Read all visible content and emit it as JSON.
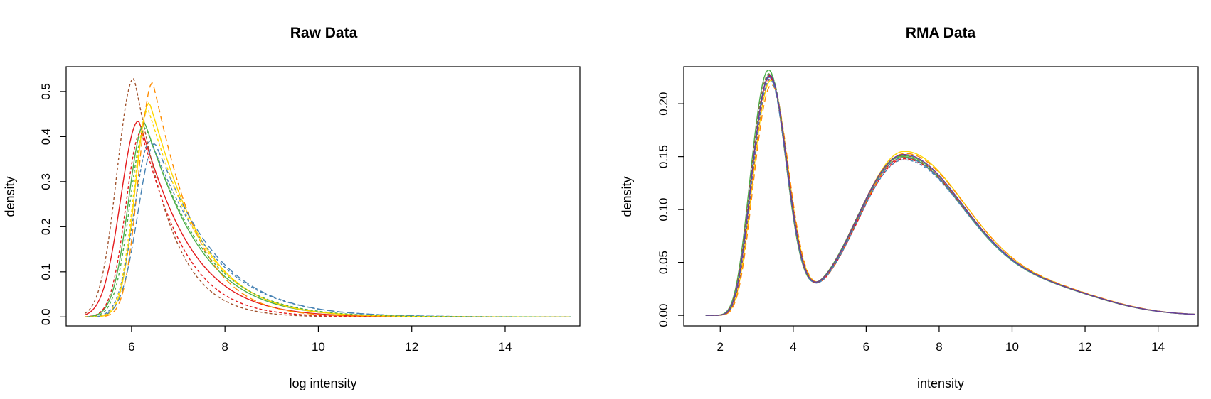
{
  "chart_data": [
    {
      "type": "line",
      "title": "Raw Data",
      "xlabel": "log intensity",
      "ylabel": "density",
      "xlim": [
        4.6,
        15.6
      ],
      "ylim": [
        -0.02,
        0.555
      ],
      "xticks": [
        6,
        8,
        10,
        12,
        14
      ],
      "yticks": [
        0.0,
        0.1,
        0.2,
        0.3,
        0.4,
        0.5
      ],
      "ytick_labels": [
        "0.0",
        "0.1",
        "0.2",
        "0.3",
        "0.4",
        "0.5"
      ],
      "grid": false,
      "legend": "none",
      "x_domain": [
        5.0,
        15.4
      ],
      "series": [
        {
          "color": "#e41a1c",
          "dash": "solid",
          "peak_x": 6.15,
          "peak_y": 0.435,
          "rise_sd": 0.38,
          "tail_scale": 1.85
        },
        {
          "color": "#4daf4a",
          "dash": "solid",
          "peak_x": 6.28,
          "peak_y": 0.43,
          "rise_sd": 0.34,
          "tail_scale": 2.0
        },
        {
          "color": "#ffd700",
          "dash": "solid",
          "peak_x": 6.38,
          "peak_y": 0.475,
          "rise_sd": 0.3,
          "tail_scale": 1.9
        },
        {
          "color": "#a0522d",
          "dash": "dashed-short",
          "peak_x": 6.05,
          "peak_y": 0.53,
          "rise_sd": 0.36,
          "tail_scale": 1.35
        },
        {
          "color": "#ff8c00",
          "dash": "dashed-long",
          "peak_x": 6.45,
          "peak_y": 0.52,
          "rise_sd": 0.3,
          "tail_scale": 1.55
        },
        {
          "color": "#e41a1c",
          "dash": "dashed-short",
          "peak_x": 6.2,
          "peak_y": 0.41,
          "rise_sd": 0.32,
          "tail_scale": 1.55
        },
        {
          "color": "#4682b4",
          "dash": "dashed-short",
          "peak_x": 6.4,
          "peak_y": 0.39,
          "rise_sd": 0.34,
          "tail_scale": 2.3
        },
        {
          "color": "#4682b4",
          "dash": "dashed-long",
          "peak_x": 6.5,
          "peak_y": 0.385,
          "rise_sd": 0.36,
          "tail_scale": 2.25
        },
        {
          "color": "#4daf4a",
          "dash": "dashed-short",
          "peak_x": 6.3,
          "peak_y": 0.42,
          "rise_sd": 0.33,
          "tail_scale": 2.1
        },
        {
          "color": "#ffd700",
          "dash": "dashed-short",
          "peak_x": 6.35,
          "peak_y": 0.46,
          "rise_sd": 0.3,
          "tail_scale": 1.95
        }
      ]
    },
    {
      "type": "line",
      "title": "RMA Data",
      "xlabel": "intensity",
      "ylabel": "density",
      "xlim": [
        1.0,
        15.1
      ],
      "ylim": [
        -0.01,
        0.235
      ],
      "xticks": [
        2,
        4,
        6,
        8,
        10,
        12,
        14
      ],
      "yticks": [
        0.0,
        0.05,
        0.1,
        0.15,
        0.2
      ],
      "ytick_labels": [
        "0.00",
        "0.05",
        "0.10",
        "0.15",
        "0.20"
      ],
      "grid": false,
      "legend": "none",
      "x_domain": [
        1.6,
        15.0
      ],
      "series": [
        {
          "color": "#e41a1c",
          "dash": "solid",
          "peak1_y": 0.224,
          "peak2_y": 0.148,
          "shift": 0.0
        },
        {
          "color": "#4daf4a",
          "dash": "solid",
          "peak1_y": 0.23,
          "peak2_y": 0.149,
          "shift": -0.03
        },
        {
          "color": "#ffd700",
          "dash": "solid",
          "peak1_y": 0.22,
          "peak2_y": 0.154,
          "shift": 0.03
        },
        {
          "color": "#a0522d",
          "dash": "dashed-short",
          "peak1_y": 0.226,
          "peak2_y": 0.15,
          "shift": -0.02
        },
        {
          "color": "#ff8c00",
          "dash": "dashed-long",
          "peak1_y": 0.216,
          "peak2_y": 0.152,
          "shift": 0.05
        },
        {
          "color": "#e41a1c",
          "dash": "dashed-short",
          "peak1_y": 0.222,
          "peak2_y": 0.147,
          "shift": 0.02
        },
        {
          "color": "#4682b4",
          "dash": "dashed-short",
          "peak1_y": 0.221,
          "peak2_y": 0.146,
          "shift": 0.01
        },
        {
          "color": "#4682b4",
          "dash": "dashed-long",
          "peak1_y": 0.223,
          "peak2_y": 0.148,
          "shift": -0.01
        },
        {
          "color": "#4daf4a",
          "dash": "dashed-short",
          "peak1_y": 0.227,
          "peak2_y": 0.15,
          "shift": 0.0
        },
        {
          "color": "#6a3d9a",
          "dash": "solid",
          "peak1_y": 0.225,
          "peak2_y": 0.151,
          "shift": 0.0
        }
      ]
    }
  ]
}
